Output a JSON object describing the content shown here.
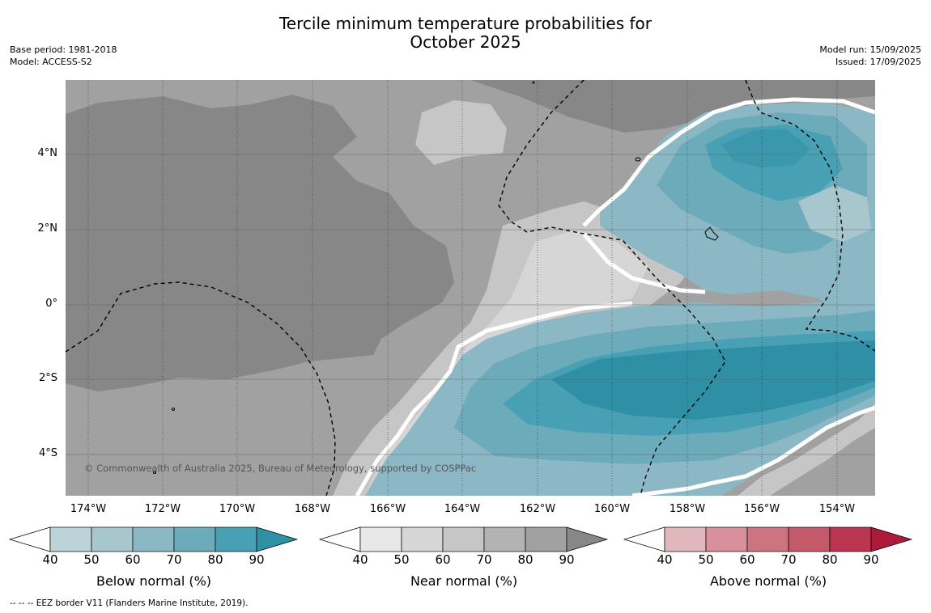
{
  "title": {
    "line1": "Tercile minimum temperature probabilities for",
    "line2": "October 2025"
  },
  "meta_left": {
    "base_period": "Base period: 1981-2018",
    "model": "Model: ACCESS-S2"
  },
  "meta_right": {
    "model_run": "Model run: 15/09/2025",
    "issued": "Issued: 17/09/2025"
  },
  "map": {
    "latitude_ticks": [
      "4°N",
      "2°N",
      "0°",
      "2°S",
      "4°S"
    ],
    "longitude_ticks": [
      "174°W",
      "172°W",
      "170°W",
      "168°W",
      "166°W",
      "164°W",
      "162°W",
      "160°W",
      "158°W",
      "156°W",
      "154°W"
    ],
    "copyright": "© Commonwealth of Australia 2025, Bureau of Meteorology, supported by COSPPac"
  },
  "colorbars": [
    {
      "title": "Below normal (%)",
      "ticks": [
        "40",
        "50",
        "60",
        "70",
        "80",
        "90"
      ],
      "colors": [
        "#ffffff",
        "#bdd3da",
        "#a7c6ce",
        "#8cb8c6",
        "#6cabba",
        "#47a0b3",
        "#2e8fa5"
      ]
    },
    {
      "title": "Near normal (%)",
      "ticks": [
        "40",
        "50",
        "60",
        "70",
        "80",
        "90"
      ],
      "colors": [
        "#ffffff",
        "#e7e7e7",
        "#d6d6d6",
        "#c6c6c6",
        "#b3b3b3",
        "#a1a1a1",
        "#878787"
      ]
    },
    {
      "title": "Above normal (%)",
      "ticks": [
        "40",
        "50",
        "60",
        "70",
        "80",
        "90"
      ],
      "colors": [
        "#ffffff",
        "#e2b6bd",
        "#d8919c",
        "#cc7581",
        "#c4596a",
        "#ba3550",
        "#ad1a3c"
      ]
    }
  ],
  "footnote": "-- -- -- EEZ border V11 (Flanders Marine Institute, 2019)."
}
